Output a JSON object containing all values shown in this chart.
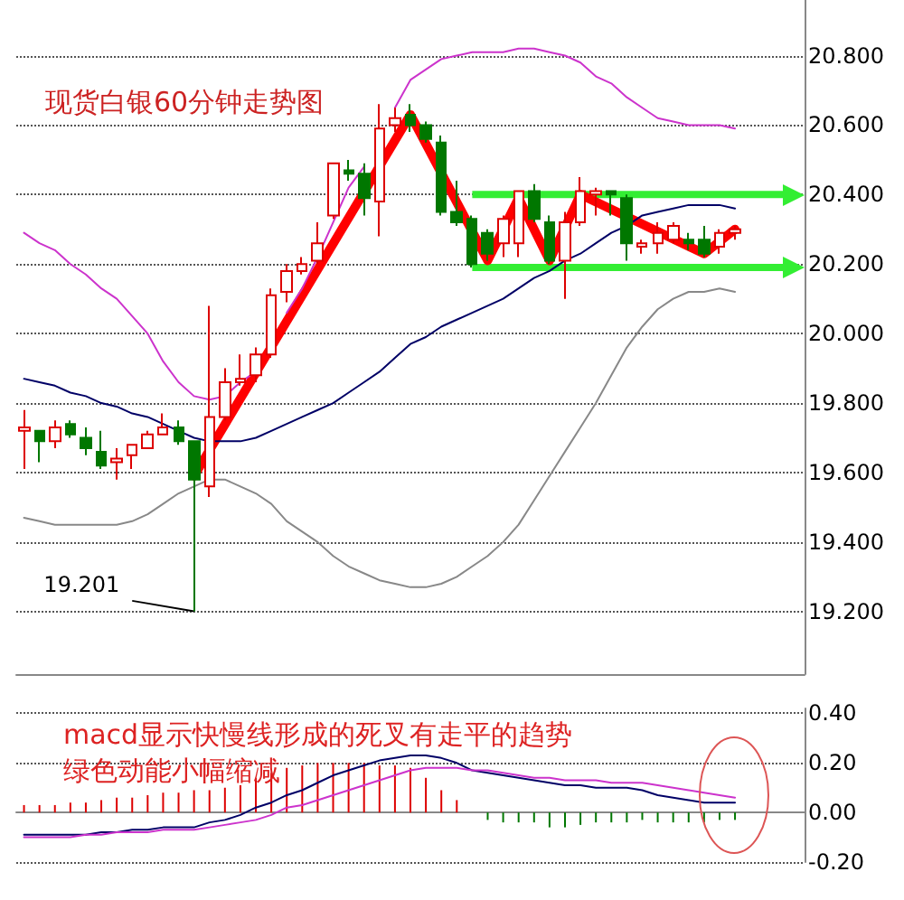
{
  "chart_data": [
    {
      "type": "candlestick",
      "title": "现货白银60分钟走势图",
      "categories": [
        null,
        null,
        null,
        null,
        null,
        null,
        null,
        null,
        null,
        null,
        null,
        null,
        null,
        null,
        null,
        null,
        null,
        null,
        null,
        null,
        null,
        null,
        null,
        null,
        null,
        null,
        null,
        null,
        null,
        null,
        null,
        null,
        null,
        null,
        null,
        null,
        null,
        null,
        null,
        null,
        null,
        null,
        null,
        null,
        null,
        null,
        null
      ],
      "colors": [
        "#dd0000",
        "#007700",
        "#dd0000",
        "#007700",
        "#007700",
        "#007700",
        "#dd0000",
        "#dd0000",
        "#dd0000",
        "#dd0000",
        "#007700",
        "#007700",
        "#dd0000",
        "#dd0000",
        "#dd0000",
        "#dd0000",
        "#dd0000",
        "#dd0000",
        "#dd0000",
        "#dd0000",
        "#dd0000",
        "#007700",
        "#007700",
        "#dd0000",
        "#dd0000",
        "#007700",
        "#007700",
        "#007700",
        "#007700",
        "#007700",
        "#007700",
        "#dd0000",
        "#dd0000",
        "#007700",
        "#007700",
        "#dd0000",
        "#dd0000",
        "#dd0000",
        "#007700",
        "#007700",
        "#dd0000",
        "#dd0000",
        "#dd0000",
        "#007700",
        "#007700",
        "#dd0000",
        "#dd0000"
      ],
      "ohlc": [
        [
          19.72,
          19.78,
          19.61,
          19.73
        ],
        [
          19.72,
          19.72,
          19.63,
          19.69
        ],
        [
          19.69,
          19.75,
          19.67,
          19.73
        ],
        [
          19.74,
          19.75,
          19.7,
          19.71
        ],
        [
          19.7,
          19.73,
          19.65,
          19.67
        ],
        [
          19.66,
          19.72,
          19.61,
          19.62
        ],
        [
          19.63,
          19.67,
          19.58,
          19.64
        ],
        [
          19.65,
          19.68,
          19.61,
          19.68
        ],
        [
          19.67,
          19.72,
          19.67,
          19.71
        ],
        [
          19.71,
          19.77,
          19.71,
          19.73
        ],
        [
          19.73,
          19.75,
          19.68,
          19.69
        ],
        [
          19.69,
          19.69,
          19.201,
          19.58
        ],
        [
          19.56,
          20.08,
          19.53,
          19.76
        ],
        [
          19.76,
          19.9,
          19.75,
          19.86
        ],
        [
          19.86,
          19.94,
          19.85,
          19.87
        ],
        [
          19.88,
          19.96,
          19.86,
          19.94
        ],
        [
          19.94,
          20.13,
          19.93,
          20.11
        ],
        [
          20.12,
          20.2,
          20.09,
          20.18
        ],
        [
          20.18,
          20.22,
          20.17,
          20.2
        ],
        [
          20.21,
          20.32,
          20.2,
          20.26
        ],
        [
          20.34,
          20.49,
          20.33,
          20.49
        ],
        [
          20.47,
          20.5,
          20.44,
          20.46
        ],
        [
          20.46,
          20.49,
          20.34,
          20.39
        ],
        [
          20.38,
          20.66,
          20.28,
          20.59
        ],
        [
          20.6,
          20.65,
          20.58,
          20.62
        ],
        [
          20.63,
          20.66,
          20.58,
          20.6
        ],
        [
          20.6,
          20.61,
          20.55,
          20.56
        ],
        [
          20.55,
          20.57,
          20.34,
          20.35
        ],
        [
          20.35,
          20.44,
          20.31,
          20.32
        ],
        [
          20.33,
          20.34,
          20.19,
          20.2
        ],
        [
          20.29,
          20.3,
          20.21,
          20.23
        ],
        [
          20.26,
          20.34,
          20.22,
          20.33
        ],
        [
          20.26,
          20.41,
          20.22,
          20.41
        ],
        [
          20.41,
          20.43,
          20.32,
          20.33
        ],
        [
          20.32,
          20.34,
          20.2,
          20.21
        ],
        [
          20.21,
          20.35,
          20.1,
          20.32
        ],
        [
          20.32,
          20.45,
          20.31,
          20.41
        ],
        [
          20.4,
          20.42,
          20.34,
          20.41
        ],
        [
          20.41,
          20.41,
          20.34,
          20.4
        ],
        [
          20.39,
          20.4,
          20.21,
          20.26
        ],
        [
          20.25,
          20.27,
          20.23,
          20.26
        ],
        [
          20.26,
          20.32,
          20.23,
          20.29
        ],
        [
          20.27,
          20.32,
          20.26,
          20.31
        ],
        [
          20.27,
          20.29,
          20.24,
          20.26
        ],
        [
          20.27,
          20.31,
          20.22,
          20.23
        ],
        [
          20.25,
          20.3,
          20.23,
          20.29
        ],
        [
          20.29,
          20.31,
          20.27,
          20.3
        ]
      ],
      "series": [
        {
          "type": "line",
          "color": "#cc33cc",
          "values": [
            20.29,
            20.26,
            20.24,
            20.2,
            20.17,
            20.13,
            20.1,
            20.05,
            20.0,
            19.92,
            19.86,
            19.82,
            19.81,
            19.82,
            19.86,
            19.89,
            null,
            20.06,
            20.13,
            20.22,
            20.32,
            20.42,
            20.48,
            null,
            20.65,
            20.73,
            20.76,
            20.79,
            20.8,
            20.81,
            20.81,
            20.81,
            20.82,
            20.82,
            20.81,
            20.8,
            20.78,
            20.74,
            20.72,
            20.68,
            20.65,
            20.62,
            20.61,
            20.6,
            20.6,
            20.6,
            20.59
          ]
        },
        {
          "type": "line",
          "color": "#000066",
          "values": [
            19.87,
            19.86,
            19.85,
            19.83,
            19.82,
            19.8,
            19.79,
            19.77,
            19.76,
            19.74,
            19.72,
            19.7,
            19.69,
            19.69,
            19.69,
            19.7,
            19.72,
            19.74,
            19.76,
            19.78,
            19.8,
            19.83,
            19.86,
            19.89,
            19.93,
            19.97,
            19.99,
            20.02,
            20.04,
            20.06,
            20.08,
            20.1,
            20.13,
            20.16,
            20.18,
            20.21,
            20.23,
            20.26,
            20.29,
            20.31,
            20.34,
            20.35,
            20.36,
            20.37,
            20.37,
            20.37,
            20.36
          ]
        },
        {
          "type": "line",
          "color": "#888888",
          "values": [
            19.47,
            19.46,
            19.45,
            19.45,
            19.45,
            19.45,
            19.45,
            19.46,
            19.48,
            19.51,
            19.54,
            19.56,
            19.58,
            19.58,
            19.56,
            19.54,
            19.51,
            19.46,
            19.43,
            19.4,
            19.36,
            19.33,
            19.31,
            19.29,
            19.28,
            19.27,
            19.27,
            19.28,
            19.3,
            19.33,
            19.36,
            19.4,
            19.45,
            19.52,
            19.59,
            19.66,
            19.73,
            19.8,
            19.88,
            19.96,
            20.02,
            20.07,
            20.1,
            20.12,
            20.12,
            20.13,
            20.12
          ]
        },
        {
          "type": "line",
          "color": "#ff0000",
          "values": [
            null,
            null,
            null,
            null,
            null,
            null,
            null,
            null,
            null,
            null,
            null,
            19.59,
            null,
            null,
            null,
            null,
            null,
            null,
            null,
            null,
            null,
            null,
            null,
            null,
            null,
            20.63,
            null,
            null,
            null,
            null,
            20.21,
            null,
            20.39,
            null,
            20.21,
            null,
            20.4,
            null,
            null,
            null,
            null,
            null,
            null,
            null,
            20.23,
            null,
            20.3
          ]
        }
      ],
      "ref_lines": [
        {
          "axis": "y",
          "value": 20.4,
          "color": "#33ee33"
        },
        {
          "axis": "y",
          "value": 20.19,
          "color": "#33ee33"
        }
      ],
      "annotations": [
        "19.201"
      ],
      "ylim": [
        19.02,
        20.96
      ],
      "yticks": [
        {
          "value": 19.2,
          "label": "19.200"
        },
        {
          "value": 19.4,
          "label": "19.400"
        },
        {
          "value": 19.6,
          "label": "19.600"
        },
        {
          "value": 19.8,
          "label": "19.800"
        },
        {
          "value": 20.0,
          "label": "20.000"
        },
        {
          "value": 20.2,
          "label": "20.200"
        },
        {
          "value": 20.4,
          "label": "20.400"
        },
        {
          "value": 20.6,
          "label": "20.600"
        },
        {
          "value": 20.8,
          "label": "20.800"
        }
      ],
      "grid": "y",
      "tick_labels": "y"
    },
    {
      "type": "bar",
      "categories": [
        null,
        null,
        null,
        null,
        null,
        null,
        null,
        null,
        null,
        null,
        null,
        null,
        null,
        null,
        null,
        null,
        null,
        null,
        null,
        null,
        null,
        null,
        null,
        null,
        null,
        null,
        null,
        null,
        null,
        null,
        null,
        null,
        null,
        null,
        null,
        null,
        null,
        null,
        null,
        null,
        null,
        null,
        null,
        null,
        null,
        null,
        null
      ],
      "series": [
        {
          "type": "bar",
          "colors": [
            "#dd0000",
            "#dd0000",
            "#dd0000",
            "#dd0000",
            "#dd0000",
            "#dd0000",
            "#dd0000",
            "#dd0000",
            "#dd0000",
            "#dd0000",
            "#dd0000",
            "#dd0000",
            "#dd0000",
            "#dd0000",
            "#dd0000",
            "#dd0000",
            "#dd0000",
            "#dd0000",
            "#dd0000",
            "#dd0000",
            "#dd0000",
            "#dd0000",
            "#dd0000",
            "#dd0000",
            "#dd0000",
            "#dd0000",
            "#dd0000",
            "#dd0000",
            "#dd0000",
            "#dd0000",
            "#007700",
            "#007700",
            "#007700",
            "#007700",
            "#007700",
            "#007700",
            "#007700",
            "#007700",
            "#007700",
            "#007700",
            "#007700",
            "#007700",
            "#007700",
            "#007700",
            "#007700",
            "#007700",
            "#007700"
          ],
          "values": [
            0.03,
            0.03,
            0.03,
            0.04,
            0.04,
            0.05,
            0.06,
            0.06,
            0.07,
            0.08,
            0.08,
            0.09,
            0.09,
            0.1,
            0.11,
            0.14,
            0.16,
            0.18,
            0.19,
            0.2,
            0.2,
            0.2,
            0.2,
            0.19,
            0.19,
            0.18,
            0.14,
            0.09,
            0.05,
            null,
            -0.03,
            -0.04,
            -0.04,
            -0.04,
            -0.06,
            -0.06,
            -0.05,
            -0.04,
            -0.04,
            -0.04,
            -0.03,
            -0.04,
            -0.04,
            -0.04,
            -0.04,
            -0.03,
            -0.03
          ]
        },
        {
          "type": "line",
          "color": "#000066",
          "values": [
            -0.09,
            -0.09,
            -0.09,
            -0.09,
            -0.09,
            -0.08,
            -0.08,
            -0.07,
            -0.07,
            -0.06,
            -0.06,
            -0.06,
            -0.04,
            -0.03,
            -0.01,
            0.02,
            0.04,
            0.07,
            0.09,
            0.12,
            0.15,
            0.17,
            0.19,
            0.21,
            0.22,
            0.23,
            0.23,
            0.22,
            0.2,
            0.17,
            0.16,
            0.15,
            0.14,
            0.13,
            0.12,
            0.11,
            0.11,
            0.1,
            0.1,
            0.1,
            0.09,
            0.07,
            0.06,
            0.05,
            0.04,
            0.04,
            0.04
          ]
        },
        {
          "type": "line",
          "color": "#cc33cc",
          "values": [
            -0.1,
            -0.1,
            -0.1,
            -0.1,
            -0.09,
            -0.09,
            -0.08,
            -0.08,
            -0.08,
            -0.07,
            -0.07,
            -0.07,
            -0.06,
            -0.05,
            -0.04,
            -0.03,
            -0.01,
            0.02,
            0.03,
            0.05,
            0.07,
            0.09,
            0.11,
            0.13,
            0.15,
            0.17,
            0.18,
            0.18,
            0.18,
            0.17,
            0.17,
            0.16,
            0.15,
            0.14,
            0.14,
            0.13,
            0.13,
            0.13,
            0.12,
            0.12,
            0.12,
            0.11,
            0.1,
            0.09,
            0.08,
            0.07,
            0.06
          ]
        }
      ],
      "annotations": [
        "macd显示快慢线形成的死叉有走平的趋势",
        "绿色动能小幅缩减"
      ],
      "ylim": [
        -0.2,
        0.42
      ],
      "yticks": [
        {
          "value": -0.2,
          "label": "-0.20"
        },
        {
          "value": 0,
          "label": "0.00"
        },
        {
          "value": 0.2,
          "label": "0.20"
        },
        {
          "value": 0.4,
          "label": "0.40"
        }
      ],
      "grid": "y",
      "tick_labels": "y"
    }
  ]
}
